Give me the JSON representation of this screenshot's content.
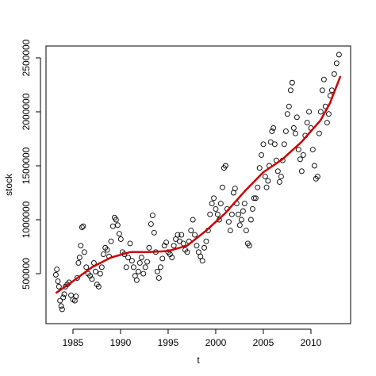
{
  "chart_data": {
    "type": "scatter",
    "x_label": "t",
    "y_label": "stock",
    "xlim": [
      1982.17,
      2014.17
    ],
    "ylim": [
      37000,
      2610000
    ],
    "xticks": [
      1985,
      1990,
      1995,
      2000,
      2005,
      2010
    ],
    "yticks": [
      500000,
      1000000,
      1500000,
      2000000,
      2500000
    ],
    "points": {
      "color": "#000000",
      "x": [
        1983.2,
        1983.31,
        1983.42,
        1983.53,
        1983.64,
        1983.76,
        1983.87,
        1983.98,
        1984.09,
        1984.2,
        1984.4,
        1984.6,
        1984.8,
        1985.0,
        1985.2,
        1985.32,
        1985.45,
        1985.58,
        1985.7,
        1985.82,
        1985.95,
        1986.08,
        1986.2,
        1986.4,
        1986.6,
        1986.8,
        1987.0,
        1987.2,
        1987.37,
        1987.53,
        1987.7,
        1987.87,
        1988.03,
        1988.2,
        1988.4,
        1988.6,
        1988.8,
        1989.0,
        1989.2,
        1989.37,
        1989.53,
        1989.7,
        1989.87,
        1990.03,
        1990.2,
        1990.4,
        1990.6,
        1990.8,
        1991.0,
        1991.2,
        1991.37,
        1991.53,
        1991.7,
        1991.87,
        1992.03,
        1992.2,
        1992.4,
        1992.6,
        1992.8,
        1993.0,
        1993.2,
        1993.37,
        1993.53,
        1993.7,
        1993.87,
        1994.03,
        1994.2,
        1994.4,
        1994.6,
        1994.8,
        1995.0,
        1995.2,
        1995.4,
        1995.6,
        1995.8,
        1996.0,
        1996.2,
        1996.4,
        1996.6,
        1996.8,
        1997.0,
        1997.2,
        1997.4,
        1997.6,
        1997.8,
        1998.0,
        1998.2,
        1998.4,
        1998.6,
        1998.8,
        1999.0,
        1999.2,
        1999.4,
        1999.6,
        1999.8,
        2000.0,
        2000.2,
        2000.37,
        2000.53,
        2000.7,
        2000.87,
        2001.03,
        2001.2,
        2001.37,
        2001.53,
        2001.7,
        2001.87,
        2002.03,
        2002.2,
        2002.37,
        2002.53,
        2002.7,
        2002.87,
        2003.03,
        2003.2,
        2003.37,
        2003.53,
        2003.7,
        2003.87,
        2004.03,
        2004.2,
        2004.4,
        2004.6,
        2004.8,
        2005.0,
        2005.2,
        2005.34,
        2005.49,
        2005.63,
        2005.77,
        2005.91,
        2006.06,
        2006.2,
        2006.37,
        2006.53,
        2006.7,
        2006.87,
        2007.03,
        2007.2,
        2007.37,
        2007.53,
        2007.7,
        2007.87,
        2008.03,
        2008.2,
        2008.37,
        2008.53,
        2008.7,
        2008.87,
        2009.03,
        2009.2,
        2009.4,
        2009.6,
        2009.8,
        2010.0,
        2010.2,
        2010.37,
        2010.53,
        2010.7,
        2010.87,
        2011.03,
        2011.2,
        2011.37,
        2011.53,
        2011.7,
        2011.87,
        2012.03,
        2012.2,
        2012.45,
        2012.7,
        2012.95
      ],
      "values": [
        490000,
        540000,
        430000,
        380000,
        250000,
        200000,
        170000,
        280000,
        310000,
        380000,
        400000,
        420000,
        300000,
        260000,
        250000,
        290000,
        460000,
        600000,
        650000,
        760000,
        930000,
        940000,
        700000,
        560000,
        500000,
        480000,
        450000,
        600000,
        520000,
        400000,
        380000,
        500000,
        560000,
        680000,
        740000,
        720000,
        660000,
        800000,
        940000,
        1020000,
        1000000,
        950000,
        870000,
        820000,
        700000,
        680000,
        560000,
        650000,
        780000,
        620000,
        560000,
        480000,
        440000,
        520000,
        600000,
        650000,
        500000,
        560000,
        610000,
        740000,
        960000,
        1040000,
        880000,
        700000,
        520000,
        460000,
        560000,
        640000,
        760000,
        790000,
        700000,
        680000,
        650000,
        760000,
        820000,
        860000,
        800000,
        860000,
        780000,
        720000,
        700000,
        800000,
        900000,
        1000000,
        860000,
        760000,
        700000,
        660000,
        620000,
        740000,
        800000,
        900000,
        1050000,
        1150000,
        1200000,
        1100000,
        1050000,
        1000000,
        1150000,
        1300000,
        1480000,
        1500000,
        1100000,
        980000,
        900000,
        1050000,
        1250000,
        1290000,
        1150000,
        1050000,
        950000,
        1000000,
        1080000,
        1150000,
        900000,
        780000,
        760000,
        1000000,
        1100000,
        1200000,
        1200000,
        1300000,
        1480000,
        1600000,
        1700000,
        1400000,
        1300000,
        1360000,
        1500000,
        1720000,
        1820000,
        1850000,
        1700000,
        1550000,
        1450000,
        1350000,
        1400000,
        1550000,
        1700000,
        1820000,
        1980000,
        2050000,
        2200000,
        2270000,
        1850000,
        1800000,
        1950000,
        1650000,
        1560000,
        1450000,
        1600000,
        1780000,
        1900000,
        2000000,
        1850000,
        1650000,
        1500000,
        1380000,
        1400000,
        1800000,
        2000000,
        2200000,
        2300000,
        2050000,
        1900000,
        1980000,
        2150000,
        2200000,
        2350000,
        2450000,
        2530000
      ]
    },
    "line": {
      "color": "#cc0000",
      "x": [
        1983.2,
        1985,
        1987,
        1989,
        1991,
        1993,
        1995,
        1997,
        1999,
        2001,
        2003,
        2005,
        2007,
        2009,
        2011,
        2012,
        2013.1
      ],
      "values": [
        320000,
        430000,
        560000,
        650000,
        700000,
        700000,
        710000,
        760000,
        900000,
        1060000,
        1260000,
        1440000,
        1560000,
        1720000,
        1920000,
        2080000,
        2330000
      ]
    }
  }
}
